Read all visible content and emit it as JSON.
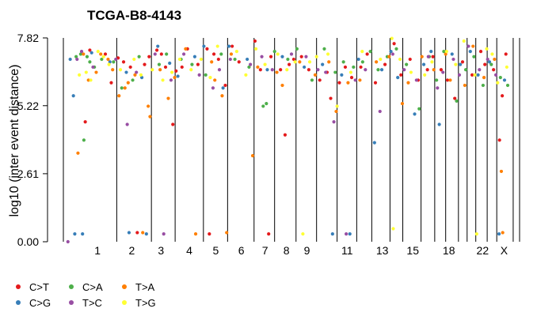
{
  "chart_data": {
    "type": "scatter",
    "title": "TCGA-B8-4143",
    "ylabel": "log10 (inter event distance)",
    "xlabel": "",
    "ylim": [
      0,
      7.82
    ],
    "yticks": [
      "0.00",
      "2.61",
      "5.22",
      "7.82"
    ],
    "grid": false,
    "legend_position": "bottom-left",
    "chromosome_labels": [
      {
        "label": "1",
        "x": 0.75
      },
      {
        "label": "2",
        "x": 1.5
      },
      {
        "label": "3",
        "x": 2.14
      },
      {
        "label": "4",
        "x": 2.76
      },
      {
        "label": "5",
        "x": 3.34
      },
      {
        "label": "6",
        "x": 3.9
      },
      {
        "label": "7",
        "x": 4.42
      },
      {
        "label": "8",
        "x": 4.89
      },
      {
        "label": "9",
        "x": 5.34
      },
      {
        "label": "11",
        "x": 6.22
      },
      {
        "label": "13",
        "x": 6.99
      },
      {
        "label": "15",
        "x": 7.66
      },
      {
        "label": "18",
        "x": 8.45
      },
      {
        "label": "22",
        "x": 9.19
      },
      {
        "label": "X",
        "x": 9.66
      }
    ],
    "chromosome_boundaries": [
      0.0,
      1.17,
      1.93,
      2.45,
      3.07,
      3.6,
      4.18,
      4.63,
      5.1,
      5.55,
      6.0,
      6.43,
      6.76,
      7.16,
      7.44,
      7.84,
      8.14,
      8.38,
      8.66,
      8.85,
      9.04,
      9.29,
      9.5,
      9.86,
      10.0
    ],
    "series": [
      {
        "name": "C>T",
        "color": "#e41a1c",
        "points": [
          [
            0.48,
            4.6
          ],
          [
            0.58,
            7.35
          ],
          [
            0.92,
            7.2
          ],
          [
            1.05,
            6.1
          ],
          [
            1.2,
            7.05
          ],
          [
            1.32,
            6.9
          ],
          [
            1.47,
            6.7
          ],
          [
            1.62,
            0.35
          ],
          [
            1.78,
            6.8
          ],
          [
            1.88,
            7.1
          ],
          [
            2.05,
            7.35
          ],
          [
            2.15,
            7.2
          ],
          [
            2.24,
            6.7
          ],
          [
            2.4,
            4.5
          ],
          [
            2.47,
            6.55
          ],
          [
            2.6,
            6.7
          ],
          [
            2.72,
            7.4
          ],
          [
            2.95,
            6.8
          ],
          [
            3.15,
            7.4
          ],
          [
            3.2,
            0.3
          ],
          [
            3.3,
            7.2
          ],
          [
            3.4,
            7.0
          ],
          [
            3.55,
            6.0
          ],
          [
            3.7,
            7.5
          ],
          [
            3.85,
            6.9
          ],
          [
            4.2,
            7.7
          ],
          [
            4.32,
            6.6
          ],
          [
            4.5,
            0.3
          ],
          [
            4.55,
            7.1
          ],
          [
            4.76,
            6.6
          ],
          [
            4.86,
            4.1
          ],
          [
            4.95,
            6.8
          ],
          [
            5.05,
            7.0
          ],
          [
            5.22,
            7.1
          ],
          [
            5.38,
            6.6
          ],
          [
            5.62,
            6.2
          ],
          [
            5.78,
            6.5
          ],
          [
            5.86,
            5.5
          ],
          [
            6.05,
            6.1
          ],
          [
            6.18,
            6.7
          ],
          [
            6.32,
            6.3
          ],
          [
            6.52,
            6.7
          ],
          [
            6.66,
            7.2
          ],
          [
            6.84,
            6.1
          ],
          [
            7.05,
            6.8
          ],
          [
            7.25,
            7.6
          ],
          [
            7.4,
            6.4
          ],
          [
            7.6,
            7.0
          ],
          [
            7.78,
            6.2
          ],
          [
            7.98,
            6.6
          ],
          [
            8.1,
            7.1
          ],
          [
            8.28,
            6.6
          ],
          [
            8.42,
            6.2
          ],
          [
            8.58,
            5.5
          ],
          [
            8.75,
            6.9
          ],
          [
            8.96,
            6.4
          ],
          [
            9.15,
            7.3
          ],
          [
            9.24,
            6.8
          ],
          [
            9.43,
            6.6
          ],
          [
            9.56,
            3.9
          ],
          [
            9.62,
            5.6
          ],
          [
            9.7,
            7.2
          ]
        ]
      },
      {
        "name": "C>G",
        "color": "#377eb8",
        "points": [
          [
            0.15,
            7.0
          ],
          [
            0.22,
            5.6
          ],
          [
            0.25,
            0.3
          ],
          [
            0.42,
            0.3
          ],
          [
            0.62,
            7.25
          ],
          [
            1.02,
            6.9
          ],
          [
            1.38,
            6.5
          ],
          [
            1.44,
            0.35
          ],
          [
            1.72,
            6.3
          ],
          [
            1.82,
            0.3
          ],
          [
            2.07,
            7.5
          ],
          [
            2.33,
            6.85
          ],
          [
            2.51,
            6.35
          ],
          [
            2.88,
            7.1
          ],
          [
            3.08,
            7.5
          ],
          [
            3.5,
            5.9
          ],
          [
            3.63,
            7.5
          ],
          [
            4.03,
            7.0
          ],
          [
            4.47,
            6.6
          ],
          [
            4.8,
            7.1
          ],
          [
            5.28,
            6.7
          ],
          [
            5.68,
            6.8
          ],
          [
            5.9,
            0.3
          ],
          [
            6.1,
            6.4
          ],
          [
            6.28,
            0.3
          ],
          [
            6.47,
            7.0
          ],
          [
            6.82,
            3.8
          ],
          [
            6.98,
            6.6
          ],
          [
            7.18,
            7.3
          ],
          [
            7.33,
            6.3
          ],
          [
            7.7,
            4.9
          ],
          [
            7.9,
            6.8
          ],
          [
            8.06,
            7.3
          ],
          [
            8.24,
            4.5
          ],
          [
            8.52,
            7.2
          ],
          [
            8.7,
            6.8
          ],
          [
            8.92,
            7.3
          ],
          [
            9.09,
            6.4
          ],
          [
            9.34,
            6.9
          ],
          [
            9.55,
            0.3
          ],
          [
            9.67,
            6.2
          ]
        ]
      },
      {
        "name": "C>A",
        "color": "#4daf4a",
        "points": [
          [
            0.28,
            7.1
          ],
          [
            0.38,
            7.2
          ],
          [
            0.45,
            3.9
          ],
          [
            0.52,
            7.1
          ],
          [
            0.58,
            6.9
          ],
          [
            0.68,
            6.7
          ],
          [
            0.84,
            7.0
          ],
          [
            1.1,
            6.9
          ],
          [
            1.28,
            5.9
          ],
          [
            1.52,
            6.2
          ],
          [
            1.66,
            7.1
          ],
          [
            2.1,
            6.8
          ],
          [
            2.26,
            7.2
          ],
          [
            2.58,
            7.0
          ],
          [
            2.82,
            6.8
          ],
          [
            3.12,
            6.4
          ],
          [
            3.46,
            7.2
          ],
          [
            3.76,
            7.0
          ],
          [
            4.07,
            6.7
          ],
          [
            4.38,
            5.2
          ],
          [
            4.45,
            5.3
          ],
          [
            4.63,
            7.3
          ],
          [
            4.92,
            7.0
          ],
          [
            5.12,
            7.4
          ],
          [
            5.45,
            6.2
          ],
          [
            5.72,
            7.4
          ],
          [
            5.96,
            6.5
          ],
          [
            6.14,
            6.9
          ],
          [
            6.36,
            6.7
          ],
          [
            6.56,
            6.9
          ],
          [
            6.73,
            7.3
          ],
          [
            6.9,
            6.6
          ],
          [
            7.1,
            7.1
          ],
          [
            7.3,
            7.4
          ],
          [
            7.52,
            6.8
          ],
          [
            7.8,
            5.1
          ],
          [
            8.02,
            7.1
          ],
          [
            8.18,
            6.2
          ],
          [
            8.34,
            7.3
          ],
          [
            8.62,
            5.4
          ],
          [
            8.82,
            6.6
          ],
          [
            9.0,
            7.1
          ],
          [
            9.2,
            6.0
          ],
          [
            9.38,
            6.8
          ],
          [
            9.58,
            6.3
          ],
          [
            9.74,
            6.0
          ]
        ]
      },
      {
        "name": "T>A",
        "color": "#ff7f00",
        "points": [
          [
            0.32,
            3.4
          ],
          [
            0.44,
            7.2
          ],
          [
            0.55,
            6.2
          ],
          [
            0.72,
            6.5
          ],
          [
            0.82,
            7.2
          ],
          [
            0.98,
            7.0
          ],
          [
            1.08,
            6.6
          ],
          [
            1.22,
            5.6
          ],
          [
            1.35,
            5.9
          ],
          [
            1.42,
            6.1
          ],
          [
            1.57,
            6.4
          ],
          [
            1.74,
            0.35
          ],
          [
            1.86,
            5.2
          ],
          [
            1.9,
            4.8
          ],
          [
            2.12,
            6.6
          ],
          [
            2.3,
            5.5
          ],
          [
            2.44,
            6.3
          ],
          [
            2.68,
            7.4
          ],
          [
            2.9,
            0.3
          ],
          [
            3.25,
            6.9
          ],
          [
            3.32,
            6.2
          ],
          [
            3.48,
            5.6
          ],
          [
            3.58,
            0.35
          ],
          [
            3.68,
            7.2
          ],
          [
            4.15,
            3.3
          ],
          [
            4.26,
            6.7
          ],
          [
            4.68,
            6.5
          ],
          [
            4.8,
            6.0
          ],
          [
            5.18,
            6.9
          ],
          [
            5.52,
            6.4
          ],
          [
            5.82,
            6.9
          ],
          [
            5.98,
            5.0
          ],
          [
            6.24,
            6.1
          ],
          [
            6.5,
            6.2
          ],
          [
            6.86,
            6.9
          ],
          [
            7.14,
            7.1
          ],
          [
            7.43,
            5.3
          ],
          [
            7.56,
            6.1
          ],
          [
            7.86,
            7.1
          ],
          [
            8.12,
            6.6
          ],
          [
            8.38,
            7.2
          ],
          [
            8.48,
            6.2
          ],
          [
            8.8,
            6.0
          ],
          [
            8.98,
            7.5
          ],
          [
            9.22,
            6.3
          ],
          [
            9.45,
            7.0
          ],
          [
            9.6,
            2.7
          ],
          [
            9.63,
            0.35
          ]
        ]
      },
      {
        "name": "T>C",
        "color": "#984ea3",
        "points": [
          [
            0.1,
            0.0
          ],
          [
            0.3,
            7.0
          ],
          [
            0.4,
            7.3
          ],
          [
            0.65,
            6.7
          ],
          [
            1.15,
            7.0
          ],
          [
            1.4,
            4.5
          ],
          [
            1.6,
            6.5
          ],
          [
            2.01,
            7.2
          ],
          [
            2.2,
            0.3
          ],
          [
            2.36,
            6.2
          ],
          [
            2.64,
            7.2
          ],
          [
            2.98,
            6.4
          ],
          [
            3.28,
            5.9
          ],
          [
            3.42,
            6.6
          ],
          [
            3.66,
            7.0
          ],
          [
            4.1,
            6.8
          ],
          [
            4.35,
            7.1
          ],
          [
            4.58,
            6.6
          ],
          [
            5.0,
            7.2
          ],
          [
            5.32,
            7.1
          ],
          [
            5.58,
            6.6
          ],
          [
            5.75,
            6.5
          ],
          [
            5.93,
            4.6
          ],
          [
            6.2,
            0.3
          ],
          [
            6.4,
            6.2
          ],
          [
            6.62,
            6.6
          ],
          [
            6.94,
            5.0
          ],
          [
            7.22,
            7.2
          ],
          [
            7.47,
            6.6
          ],
          [
            7.74,
            6.2
          ],
          [
            8.0,
            7.1
          ],
          [
            8.2,
            5.9
          ],
          [
            8.32,
            6.5
          ],
          [
            8.55,
            7.0
          ],
          [
            8.68,
            6.4
          ],
          [
            8.88,
            7.5
          ],
          [
            9.12,
            6.6
          ],
          [
            9.3,
            7.0
          ],
          [
            9.48,
            6.4
          ]
        ]
      },
      {
        "name": "T>G",
        "color": "#ffff33",
        "points": [
          [
            0.35,
            6.4
          ],
          [
            0.5,
            6.5
          ],
          [
            0.6,
            6.2
          ],
          [
            0.76,
            7.3
          ],
          [
            0.88,
            7.1
          ],
          [
            1.0,
            6.8
          ],
          [
            1.25,
            6.6
          ],
          [
            1.55,
            7.0
          ],
          [
            1.7,
            6.4
          ],
          [
            1.95,
            6.6
          ],
          [
            2.18,
            6.2
          ],
          [
            2.38,
            6.5
          ],
          [
            2.55,
            7.0
          ],
          [
            2.8,
            6.6
          ],
          [
            3.02,
            7.0
          ],
          [
            3.22,
            6.3
          ],
          [
            3.38,
            7.5
          ],
          [
            3.8,
            7.3
          ],
          [
            4.0,
            6.4
          ],
          [
            4.22,
            7.4
          ],
          [
            4.42,
            6.8
          ],
          [
            4.7,
            7.2
          ],
          [
            4.9,
            6.6
          ],
          [
            5.08,
            6.9
          ],
          [
            5.25,
            0.3
          ],
          [
            5.4,
            6.9
          ],
          [
            5.55,
            7.1
          ],
          [
            5.8,
            7.2
          ],
          [
            6.0,
            5.2
          ],
          [
            6.3,
            6.5
          ],
          [
            6.55,
            7.3
          ],
          [
            6.95,
            7.0
          ],
          [
            7.2,
            7.8
          ],
          [
            7.23,
            0.5
          ],
          [
            7.38,
            7.0
          ],
          [
            7.62,
            6.5
          ],
          [
            7.92,
            6.4
          ],
          [
            8.08,
            6.9
          ],
          [
            8.4,
            7.3
          ],
          [
            8.6,
            6.8
          ],
          [
            8.78,
            7.7
          ],
          [
            9.02,
            6.4
          ],
          [
            9.06,
            0.3
          ],
          [
            9.28,
            7.4
          ],
          [
            9.4,
            7.2
          ],
          [
            9.52,
            6.1
          ],
          [
            9.72,
            6.7
          ]
        ]
      }
    ]
  }
}
